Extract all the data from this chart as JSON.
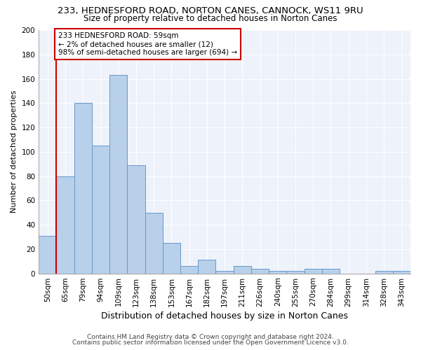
{
  "title": "233, HEDNESFORD ROAD, NORTON CANES, CANNOCK, WS11 9RU",
  "subtitle": "Size of property relative to detached houses in Norton Canes",
  "xlabel": "Distribution of detached houses by size in Norton Canes",
  "ylabel": "Number of detached properties",
  "bar_labels": [
    "50sqm",
    "65sqm",
    "79sqm",
    "94sqm",
    "109sqm",
    "123sqm",
    "138sqm",
    "153sqm",
    "167sqm",
    "182sqm",
    "197sqm",
    "211sqm",
    "226sqm",
    "240sqm",
    "255sqm",
    "270sqm",
    "284sqm",
    "299sqm",
    "314sqm",
    "328sqm",
    "343sqm"
  ],
  "bar_values": [
    31,
    80,
    140,
    105,
    163,
    89,
    50,
    25,
    6,
    11,
    2,
    6,
    4,
    2,
    2,
    4,
    4,
    0,
    0,
    2,
    2
  ],
  "bar_color": "#b8d0ea",
  "bar_edge_color": "#6699cc",
  "vline_color": "#cc0000",
  "annotation_text": "233 HEDNESFORD ROAD: 59sqm\n← 2% of detached houses are smaller (12)\n98% of semi-detached houses are larger (694) →",
  "annotation_box_color": "#ffffff",
  "annotation_box_edge": "#cc0000",
  "ylim_max": 200,
  "footnote1": "Contains HM Land Registry data © Crown copyright and database right 2024.",
  "footnote2": "Contains public sector information licensed under the Open Government Licence v3.0.",
  "bg_color": "#eef2fa",
  "title_fontsize": 9.5,
  "subtitle_fontsize": 8.5,
  "xlabel_fontsize": 9,
  "ylabel_fontsize": 8,
  "tick_fontsize": 7.5,
  "annotation_fontsize": 7.5,
  "footnote_fontsize": 6.5
}
